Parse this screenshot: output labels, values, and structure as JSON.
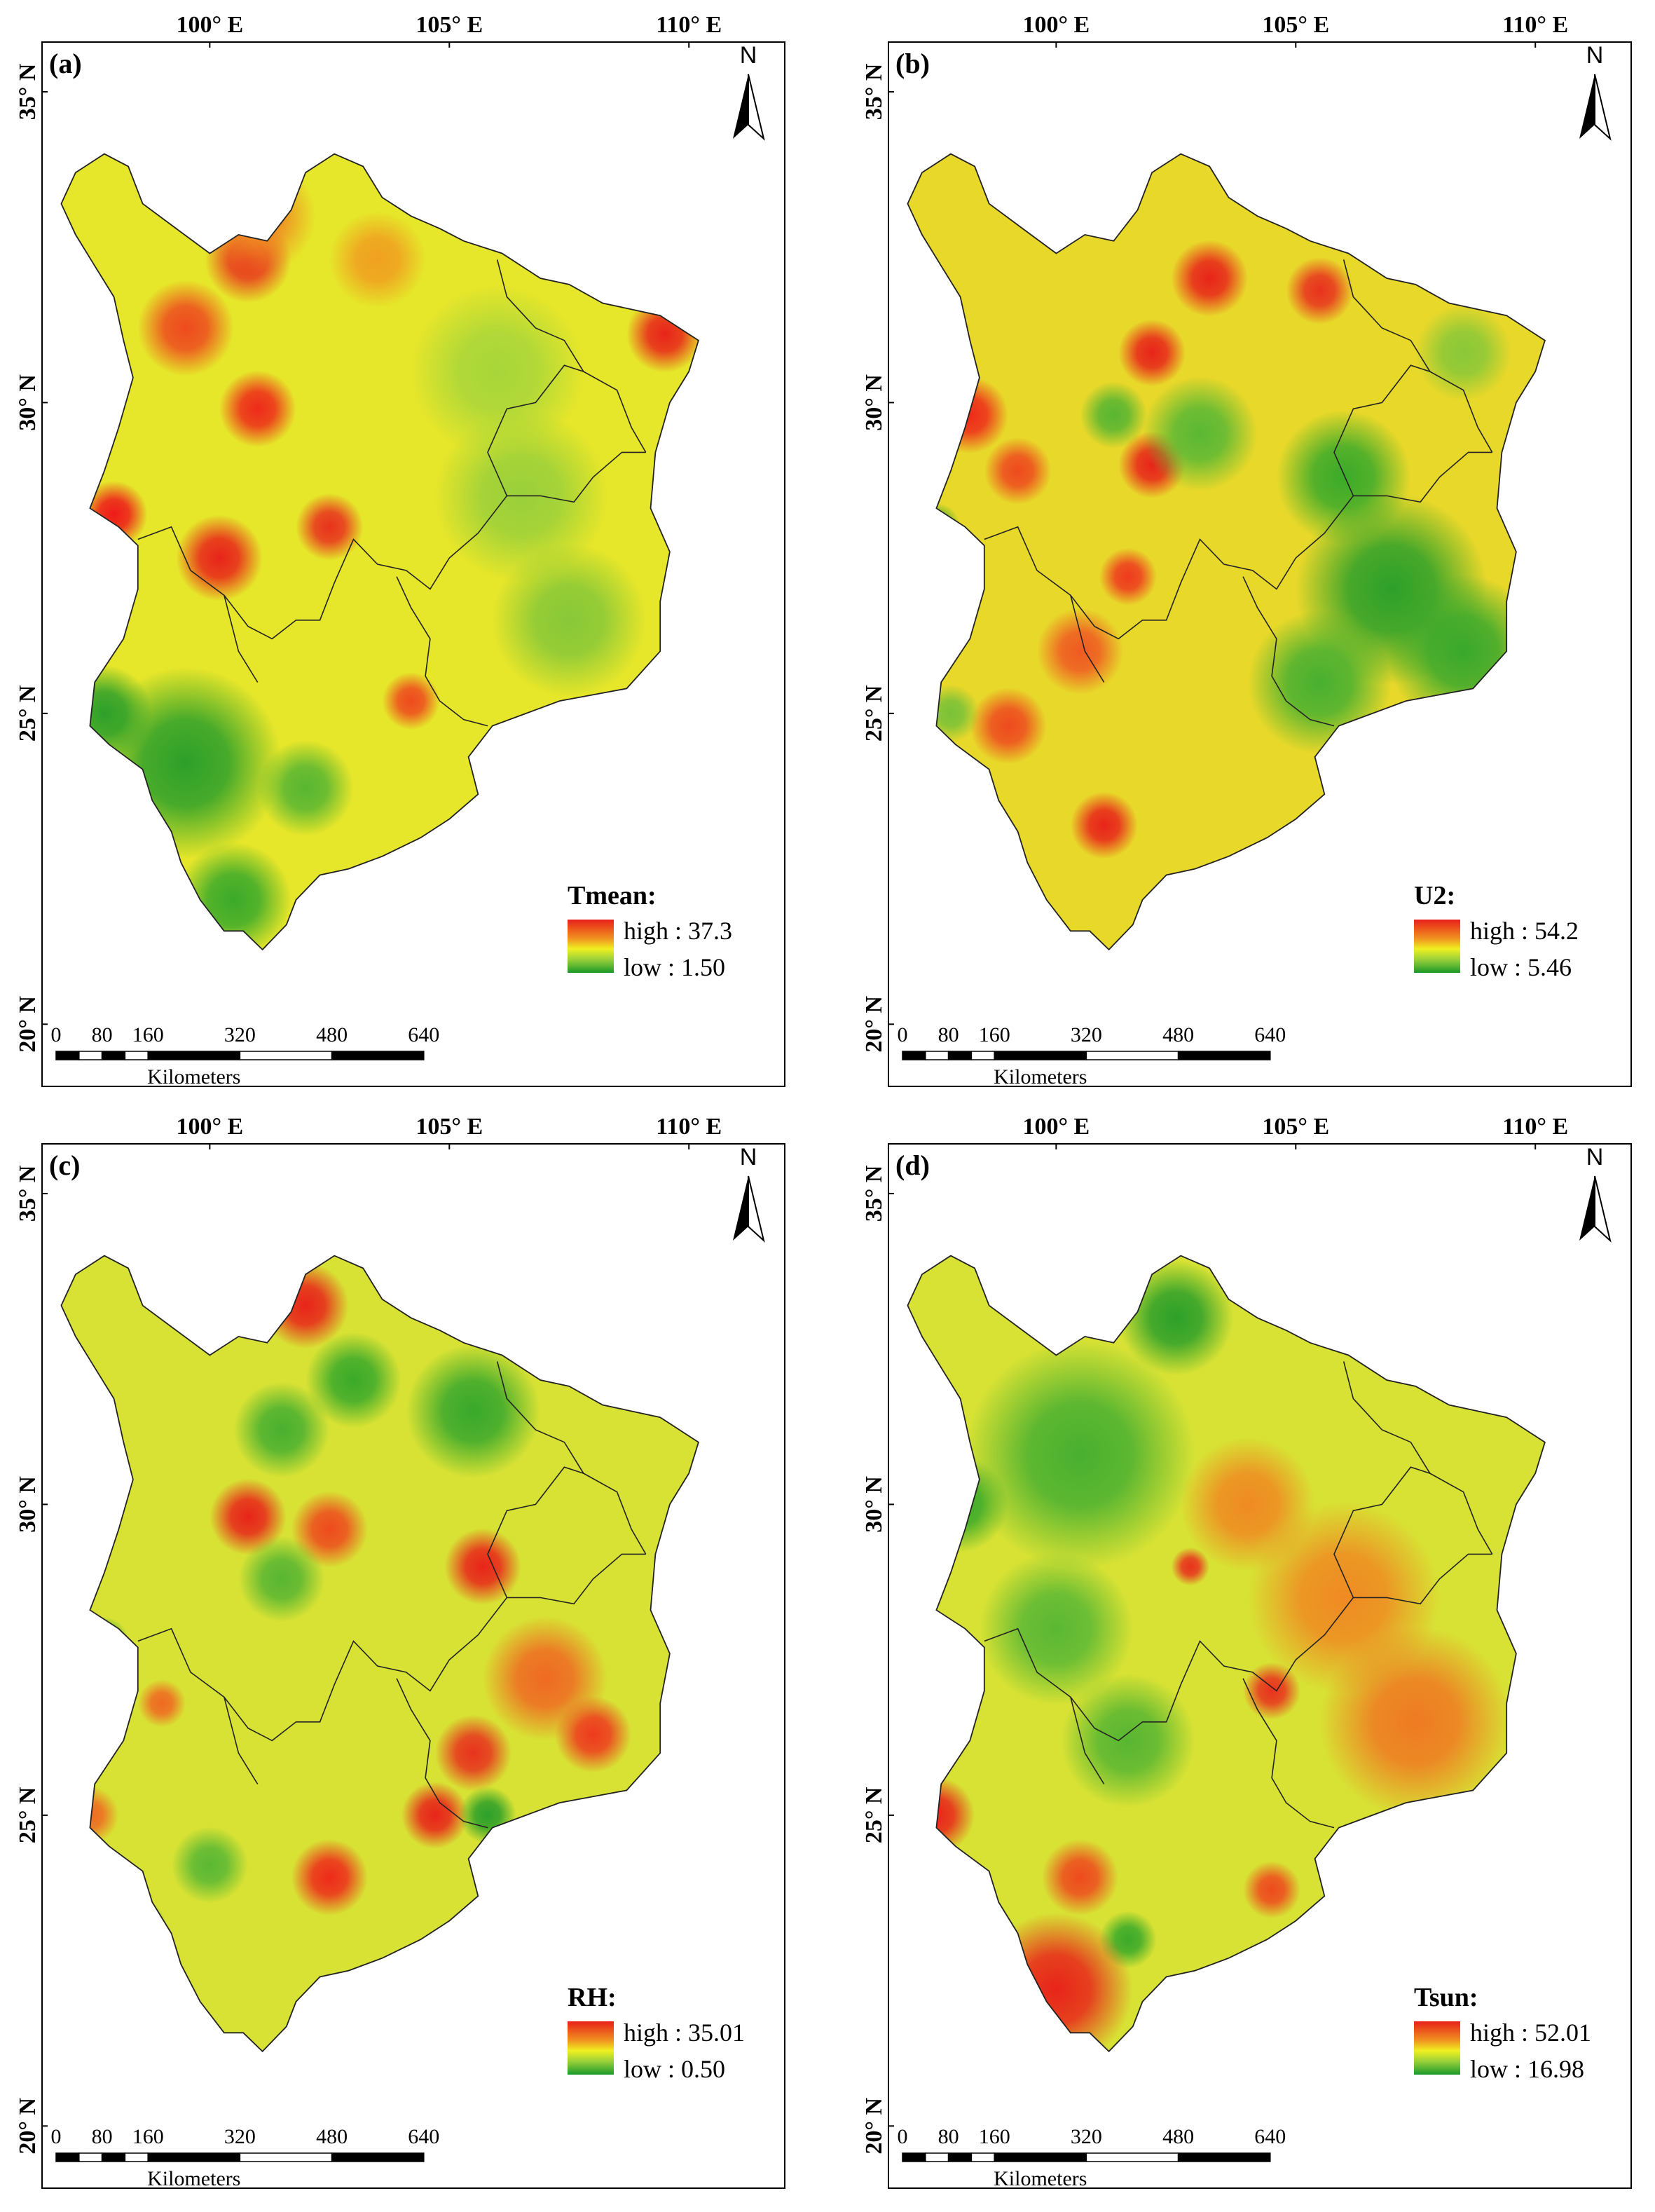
{
  "panels": [
    {
      "label": "(a)",
      "lon_ticks": [
        "100° E",
        "105° E",
        "110° E"
      ],
      "lat_ticks": [
        "35° N",
        "30° N",
        "25° N",
        "20° N"
      ],
      "north_label": "N",
      "legend": {
        "title": "Tmean:",
        "high": "high : 37.3",
        "low": "low : 1.50"
      },
      "scale": {
        "ticks": [
          "0",
          "80",
          "160",
          "320",
          "480",
          "640"
        ],
        "unit": "Kilometers"
      },
      "base_color": "#e6e62a",
      "hotspots": [
        {
          "lon": 100.8,
          "lat": 32.3,
          "color": "#e83a1e",
          "r": 0.9
        },
        {
          "lon": 99.5,
          "lat": 31.2,
          "color": "#ee4a1e",
          "r": 1.0
        },
        {
          "lon": 101.0,
          "lat": 29.9,
          "color": "#ee2a1a",
          "r": 0.8
        },
        {
          "lon": 100.2,
          "lat": 27.5,
          "color": "#e8241a",
          "r": 0.9
        },
        {
          "lon": 102.5,
          "lat": 28.0,
          "color": "#e8321e",
          "r": 0.7
        },
        {
          "lon": 98.0,
          "lat": 28.2,
          "color": "#ee1a1a",
          "r": 0.7
        },
        {
          "lon": 109.5,
          "lat": 31.1,
          "color": "#e8241a",
          "r": 0.8
        },
        {
          "lon": 104.2,
          "lat": 25.2,
          "color": "#ee4a1e",
          "r": 0.6
        },
        {
          "lon": 103.5,
          "lat": 32.3,
          "color": "#f0a020",
          "r": 1.0
        },
        {
          "lon": 106.5,
          "lat": 28.5,
          "color": "#9ad03a",
          "r": 1.8
        },
        {
          "lon": 106.0,
          "lat": 30.5,
          "color": "#a8d63a",
          "r": 1.8
        },
        {
          "lon": 107.5,
          "lat": 26.5,
          "color": "#88c838",
          "r": 1.6
        },
        {
          "lon": 99.5,
          "lat": 24.2,
          "color": "#2ca02a",
          "r": 2.0
        },
        {
          "lon": 97.8,
          "lat": 25.0,
          "color": "#2ca02a",
          "r": 1.0
        },
        {
          "lon": 100.5,
          "lat": 22.0,
          "color": "#3aaa2a",
          "r": 1.2
        },
        {
          "lon": 102.0,
          "lat": 23.8,
          "color": "#58b632",
          "r": 1.0
        },
        {
          "lon": 101.0,
          "lat": 33.0,
          "color": "#ef8a22",
          "r": 1.2
        }
      ]
    },
    {
      "label": "(b)",
      "lon_ticks": [
        "100° E",
        "105° E",
        "110° E"
      ],
      "lat_ticks": [
        "35° N",
        "30° N",
        "25° N",
        "20° N"
      ],
      "north_label": "N",
      "legend": {
        "title": "U2:",
        "high": "high : 54.2",
        "low": "low : 5.46"
      },
      "scale": {
        "ticks": [
          "0",
          "80",
          "160",
          "320",
          "480",
          "640"
        ],
        "unit": "Kilometers"
      },
      "base_color": "#e8d82a",
      "hotspots": [
        {
          "lon": 103.2,
          "lat": 32.0,
          "color": "#e8241a",
          "r": 0.8
        },
        {
          "lon": 105.5,
          "lat": 31.8,
          "color": "#e8321e",
          "r": 0.7
        },
        {
          "lon": 102.0,
          "lat": 30.8,
          "color": "#e8241a",
          "r": 0.7
        },
        {
          "lon": 98.2,
          "lat": 29.8,
          "color": "#ee2a1a",
          "r": 0.8
        },
        {
          "lon": 102.0,
          "lat": 29.0,
          "color": "#e8241a",
          "r": 0.7
        },
        {
          "lon": 99.2,
          "lat": 28.9,
          "color": "#ee4a1e",
          "r": 0.7
        },
        {
          "lon": 101.5,
          "lat": 27.2,
          "color": "#ee3a1e",
          "r": 0.6
        },
        {
          "lon": 100.5,
          "lat": 26.0,
          "color": "#ef5a22",
          "r": 0.9
        },
        {
          "lon": 99.0,
          "lat": 24.8,
          "color": "#ee4a1e",
          "r": 0.8
        },
        {
          "lon": 101.0,
          "lat": 23.2,
          "color": "#e8241a",
          "r": 0.7
        },
        {
          "lon": 98.2,
          "lat": 23.2,
          "color": "#ee3a1e",
          "r": 0.6
        },
        {
          "lon": 107.0,
          "lat": 27.0,
          "color": "#2ca02a",
          "r": 2.0
        },
        {
          "lon": 108.5,
          "lat": 26.0,
          "color": "#38a82c",
          "r": 1.6
        },
        {
          "lon": 106.0,
          "lat": 28.8,
          "color": "#3aaa2a",
          "r": 1.4
        },
        {
          "lon": 105.5,
          "lat": 25.5,
          "color": "#48b030",
          "r": 1.5
        },
        {
          "lon": 103.0,
          "lat": 29.5,
          "color": "#5ab834",
          "r": 1.2
        },
        {
          "lon": 101.2,
          "lat": 29.8,
          "color": "#58b632",
          "r": 0.7
        },
        {
          "lon": 108.5,
          "lat": 30.8,
          "color": "#8ac838",
          "r": 1.0
        },
        {
          "lon": 97.5,
          "lat": 28.0,
          "color": "#3aaa2a",
          "r": 0.5
        },
        {
          "lon": 97.8,
          "lat": 25.0,
          "color": "#7ac238",
          "r": 0.6
        }
      ]
    },
    {
      "label": "(c)",
      "lon_ticks": [
        "100° E",
        "105° E",
        "110° E"
      ],
      "lat_ticks": [
        "35° N",
        "30° N",
        "25° N",
        "20° N"
      ],
      "north_label": "N",
      "legend": {
        "title": "RH:",
        "high": "high : 35.01",
        "low": "low : 0.50"
      },
      "scale": {
        "ticks": [
          "0",
          "80",
          "160",
          "320",
          "480",
          "640"
        ],
        "unit": "Kilometers"
      },
      "base_color": "#d8e234",
      "hotspots": [
        {
          "lon": 102.0,
          "lat": 33.2,
          "color": "#e8241a",
          "r": 0.9
        },
        {
          "lon": 100.8,
          "lat": 29.8,
          "color": "#e8241a",
          "r": 0.8
        },
        {
          "lon": 102.5,
          "lat": 29.6,
          "color": "#ee4a1e",
          "r": 0.8
        },
        {
          "lon": 105.7,
          "lat": 29.0,
          "color": "#e8241a",
          "r": 0.8
        },
        {
          "lon": 105.5,
          "lat": 26.0,
          "color": "#e8321e",
          "r": 0.8
        },
        {
          "lon": 108.0,
          "lat": 26.3,
          "color": "#ee3a1e",
          "r": 0.8
        },
        {
          "lon": 104.7,
          "lat": 25.0,
          "color": "#e8241a",
          "r": 0.7
        },
        {
          "lon": 102.5,
          "lat": 24.0,
          "color": "#ee2a1a",
          "r": 0.8
        },
        {
          "lon": 107.0,
          "lat": 27.2,
          "color": "#ef6a22",
          "r": 1.3
        },
        {
          "lon": 103.0,
          "lat": 32.0,
          "color": "#3aaa2a",
          "r": 1.0
        },
        {
          "lon": 105.5,
          "lat": 31.5,
          "color": "#38a82c",
          "r": 1.4
        },
        {
          "lon": 101.5,
          "lat": 31.2,
          "color": "#48b030",
          "r": 1.0
        },
        {
          "lon": 101.5,
          "lat": 28.8,
          "color": "#58b632",
          "r": 0.9
        },
        {
          "lon": 105.8,
          "lat": 25.0,
          "color": "#2ca02a",
          "r": 0.6
        },
        {
          "lon": 97.8,
          "lat": 27.8,
          "color": "#2ca02a",
          "r": 0.5
        },
        {
          "lon": 100.0,
          "lat": 24.2,
          "color": "#5ab834",
          "r": 0.8
        },
        {
          "lon": 98.5,
          "lat": 23.2,
          "color": "#48b030",
          "r": 0.6
        },
        {
          "lon": 97.5,
          "lat": 25.0,
          "color": "#ef6a22",
          "r": 0.6
        },
        {
          "lon": 99.0,
          "lat": 26.8,
          "color": "#ef6a22",
          "r": 0.5
        }
      ]
    },
    {
      "label": "(d)",
      "lon_ticks": [
        "100° E",
        "105° E",
        "110° E"
      ],
      "lat_ticks": [
        "35° N",
        "30° N",
        "25° N",
        "20° N"
      ],
      "north_label": "N",
      "legend": {
        "title": "Tsun:",
        "high": "high : 52.01",
        "low": "low : 16.98"
      },
      "scale": {
        "ticks": [
          "0",
          "80",
          "160",
          "320",
          "480",
          "640"
        ],
        "unit": "Kilometers"
      },
      "base_color": "#d8e234",
      "hotspots": [
        {
          "lon": 100.5,
          "lat": 30.8,
          "color": "#48b030",
          "r": 2.4
        },
        {
          "lon": 102.5,
          "lat": 33.0,
          "color": "#2ca02a",
          "r": 1.2
        },
        {
          "lon": 100.0,
          "lat": 28.0,
          "color": "#5ab834",
          "r": 1.6
        },
        {
          "lon": 101.5,
          "lat": 26.2,
          "color": "#58b632",
          "r": 1.4
        },
        {
          "lon": 98.0,
          "lat": 30.0,
          "color": "#3aaa2a",
          "r": 1.0
        },
        {
          "lon": 101.5,
          "lat": 23.0,
          "color": "#3aaa2a",
          "r": 0.6
        },
        {
          "lon": 106.0,
          "lat": 28.5,
          "color": "#ef8a22",
          "r": 2.0
        },
        {
          "lon": 107.5,
          "lat": 26.5,
          "color": "#ef7a22",
          "r": 2.0
        },
        {
          "lon": 104.0,
          "lat": 30.0,
          "color": "#ef8a22",
          "r": 1.4
        },
        {
          "lon": 104.5,
          "lat": 27.0,
          "color": "#e8321e",
          "r": 0.6
        },
        {
          "lon": 97.5,
          "lat": 25.0,
          "color": "#e8241a",
          "r": 0.8
        },
        {
          "lon": 100.0,
          "lat": 22.2,
          "color": "#e8241a",
          "r": 1.6
        },
        {
          "lon": 100.5,
          "lat": 24.0,
          "color": "#ee4a1e",
          "r": 0.8
        },
        {
          "lon": 104.5,
          "lat": 23.8,
          "color": "#ee4a1e",
          "r": 0.6
        },
        {
          "lon": 102.8,
          "lat": 29.0,
          "color": "#e8321e",
          "r": 0.4
        }
      ]
    }
  ]
}
